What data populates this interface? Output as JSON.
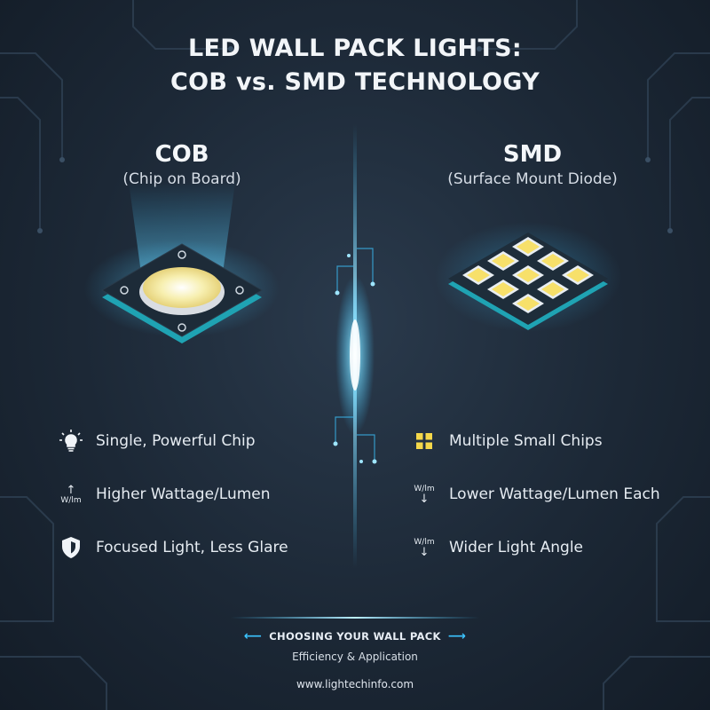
{
  "title": {
    "line1": "LED WALL PACK LIGHTS:",
    "line2": "COB vs. SMD TECHNOLOGY"
  },
  "cob": {
    "name": "COB",
    "subtitle": "(Chip on Board)",
    "features": [
      {
        "icon": "lightbulb-icon",
        "text": "Single, Powerful Chip"
      },
      {
        "icon": "arrow-up-icon",
        "icon_label": "W/lm",
        "text": "Higher Wattage/Lumen"
      },
      {
        "icon": "shield-icon",
        "text": "Focused Light, Less Glare"
      }
    ]
  },
  "smd": {
    "name": "SMD",
    "subtitle": "(Surface Mount Diode)",
    "features": [
      {
        "icon": "grid-squares-icon",
        "text": "Multiple Small Chips"
      },
      {
        "icon": "arrow-down-icon",
        "icon_label": "W/lm",
        "text": "Lower Wattage/Lumen Each"
      },
      {
        "icon": "arrow-down-icon",
        "icon_label": "W/lm",
        "text": "Wider Light Angle"
      }
    ]
  },
  "footer": {
    "heading": "CHOOSING YOUR WALL PACK",
    "subheading": "Efficiency & Application",
    "url": "www.lightechinfo.com"
  },
  "colors": {
    "accent_cyan": "#3cc4ff",
    "chip_yellow": "#f7efb0",
    "board_teal": "#1fa3b3",
    "background": "#1c2836"
  }
}
